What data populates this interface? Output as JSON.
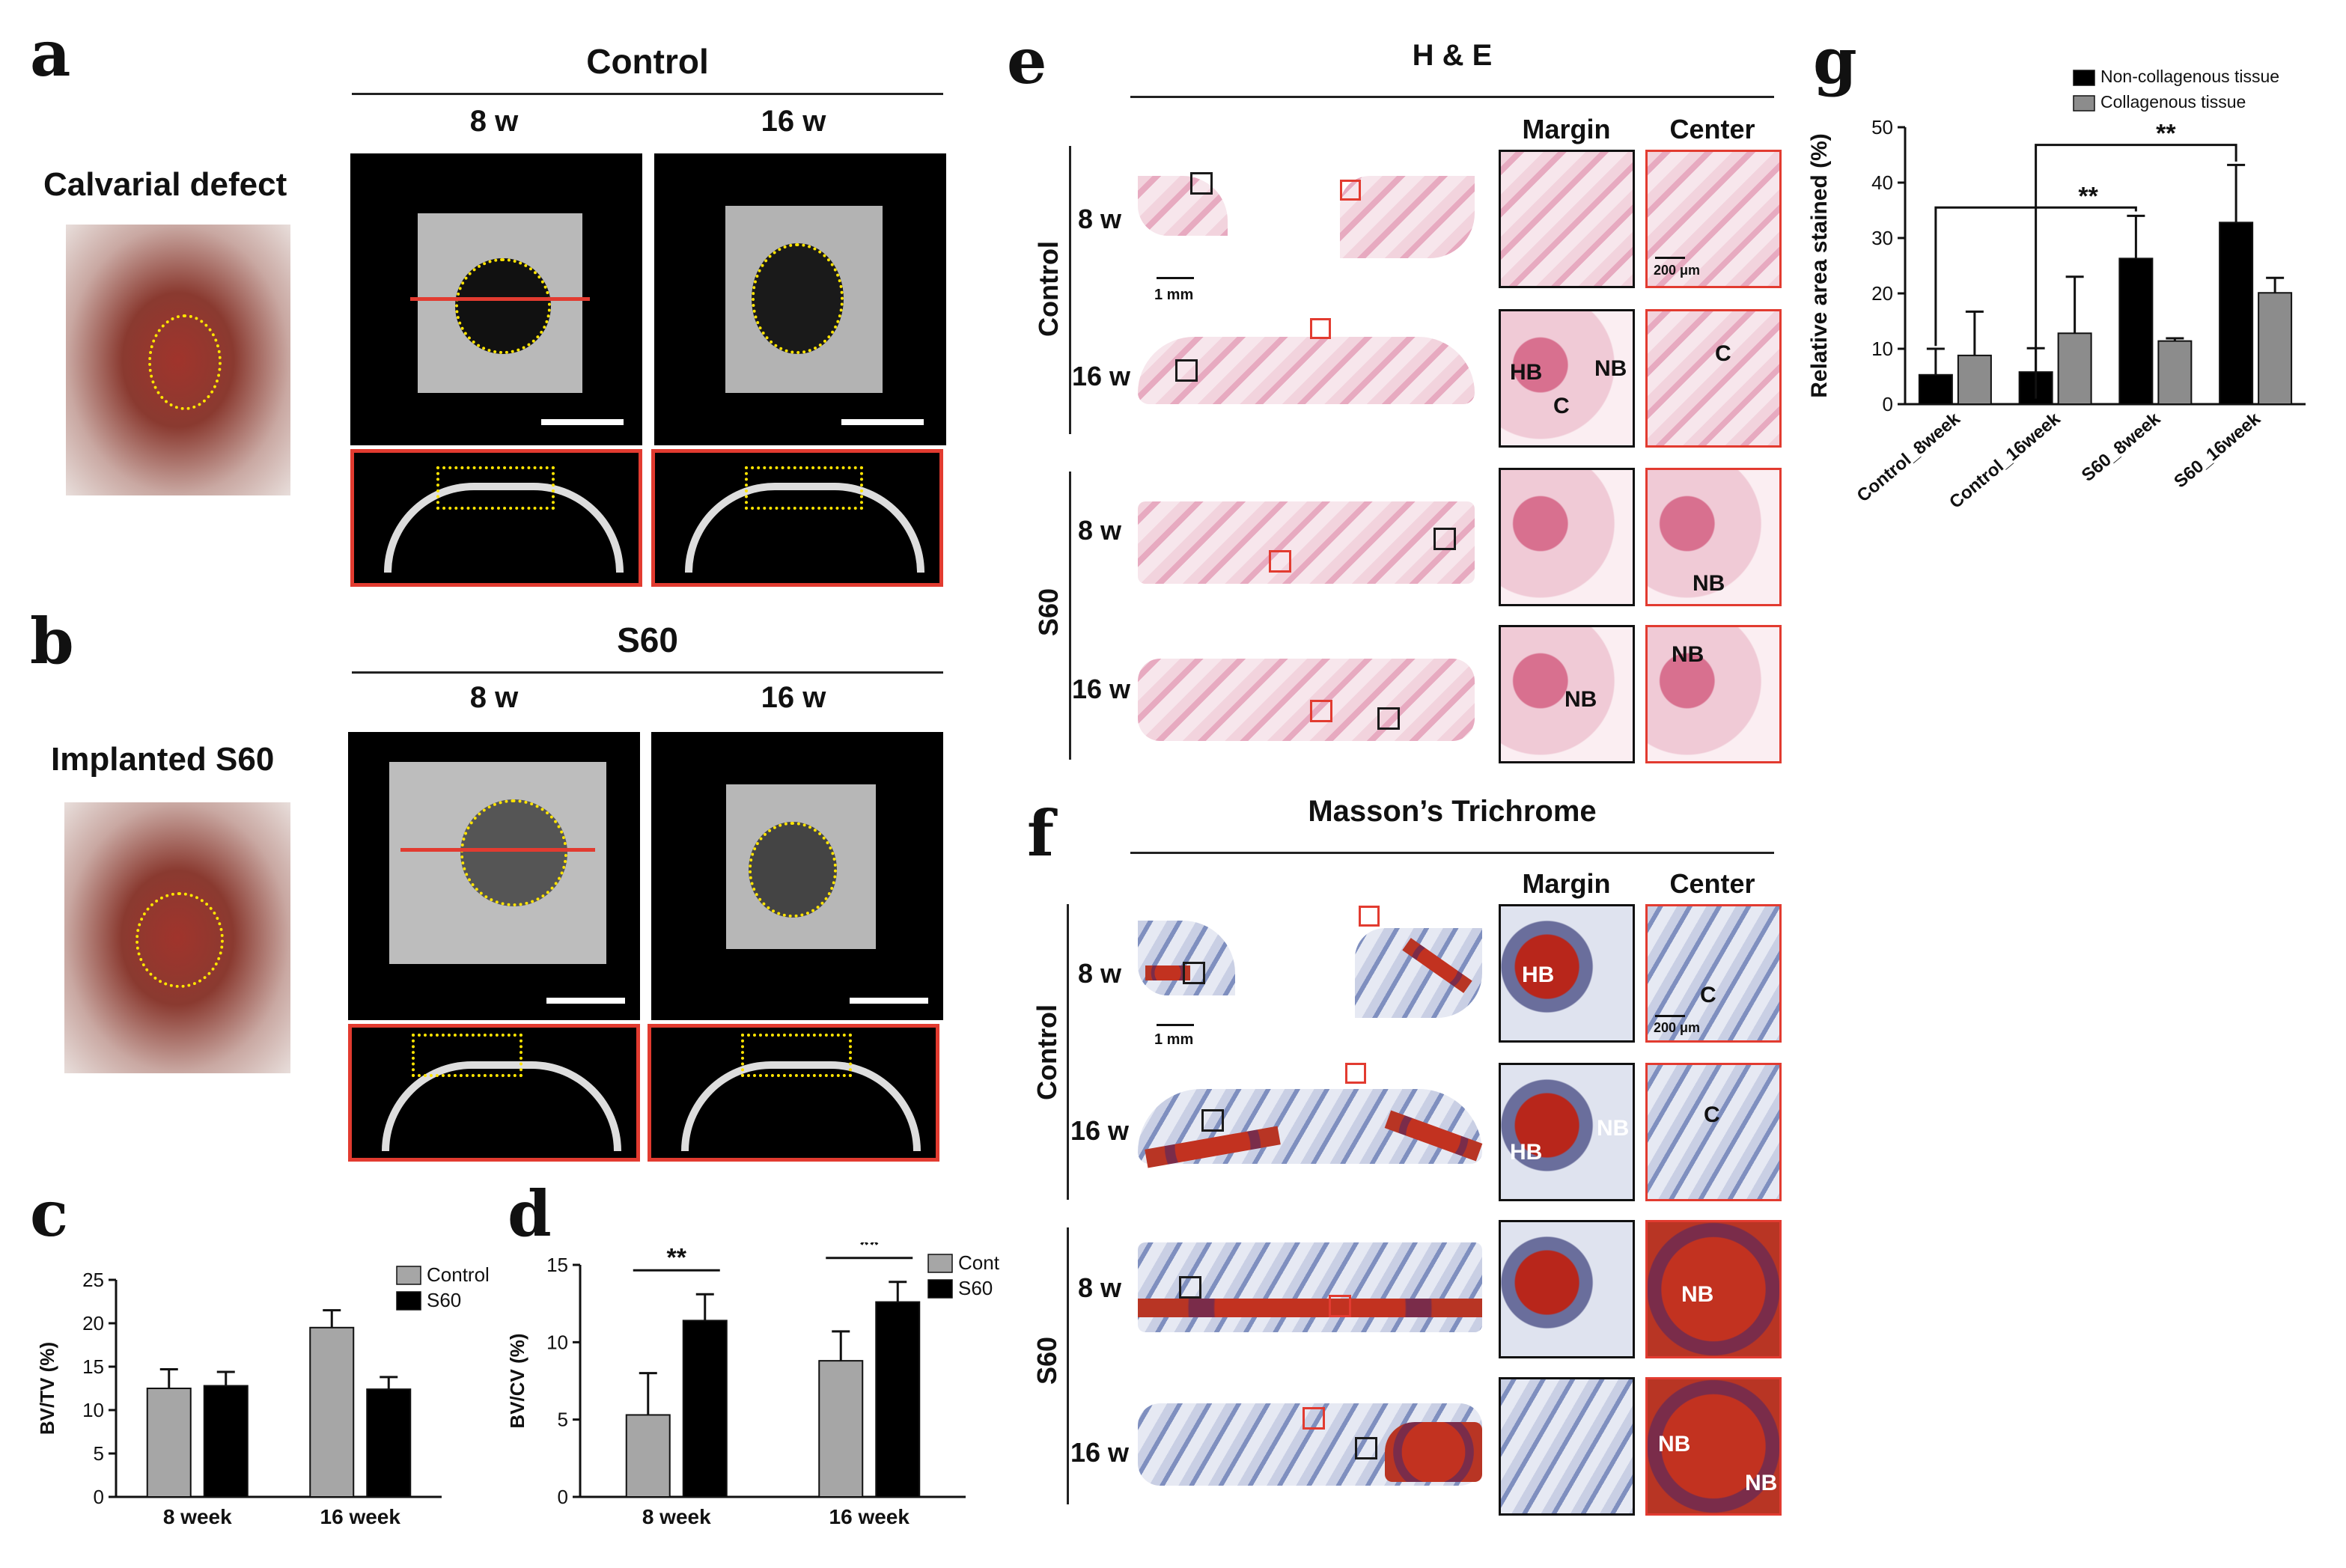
{
  "panels": {
    "a": {
      "letter": "a",
      "title": "Control",
      "cols": [
        "8 w",
        "16 w"
      ],
      "side_label": "Calvarial defect"
    },
    "b": {
      "letter": "b",
      "title": "S60",
      "cols": [
        "8 w",
        "16 w"
      ],
      "side_label": "Implanted S60"
    },
    "e": {
      "letter": "e",
      "title": "H & E",
      "col_margin": "Margin",
      "col_center": "Center",
      "group_control": "Control",
      "group_s60": "S60",
      "row_8w": "8 w",
      "row_16w": "16 w",
      "scale_1mm": "1 mm",
      "scale_200um": "200 μm",
      "tissue_hb": "HB",
      "tissue_nb": "NB",
      "tissue_c": "C"
    },
    "f": {
      "letter": "f",
      "title": "Masson’s Trichrome",
      "col_margin": "Margin",
      "col_center": "Center",
      "group_control": "Control",
      "group_s60": "S60",
      "row_8w": "8 w",
      "row_16w": "16 w",
      "scale_1mm": "1 mm",
      "scale_200um": "200 μm",
      "tissue_hb": "HB",
      "tissue_nb": "NB",
      "tissue_c": "C"
    }
  },
  "chart_data": [
    {
      "id": "c",
      "letter": "c",
      "type": "bar",
      "categories": [
        "8 week",
        "16 week"
      ],
      "series": [
        {
          "name": "Control",
          "values": [
            12.5,
            19.5
          ],
          "errors": [
            2.2,
            2.0
          ],
          "color": "#a6a6a6"
        },
        {
          "name": "S60",
          "values": [
            12.8,
            12.4
          ],
          "errors": [
            1.6,
            1.4
          ],
          "color": "#000000"
        }
      ],
      "ylabel": "BV/TV (%)",
      "ylim": [
        0,
        25
      ],
      "yticks": [
        0,
        5,
        10,
        15,
        20,
        25
      ],
      "legend": "top-right"
    },
    {
      "id": "d",
      "letter": "d",
      "type": "bar",
      "categories": [
        "8 week",
        "16 week"
      ],
      "series": [
        {
          "name": "Cont",
          "values": [
            5.3,
            8.8
          ],
          "errors": [
            2.7,
            1.9
          ],
          "color": "#a6a6a6"
        },
        {
          "name": "S60",
          "values": [
            11.4,
            12.6
          ],
          "errors": [
            1.7,
            1.3
          ],
          "color": "#000000"
        }
      ],
      "ylabel": "BV/CV (%)",
      "ylim": [
        0,
        15
      ],
      "yticks": [
        0,
        5,
        10,
        15
      ],
      "annotations": [
        "**",
        "**"
      ],
      "legend": "top-right"
    },
    {
      "id": "g",
      "letter": "g",
      "type": "bar",
      "categories": [
        "Control_8week",
        "Control_16week",
        "S60_8week",
        "S60_16week"
      ],
      "series": [
        {
          "name": "Non-collagenous tissue",
          "values": [
            5.3,
            5.8,
            26.3,
            32.8
          ],
          "errors": [
            4.7,
            4.3,
            7.7,
            10.4
          ],
          "color": "#000000"
        },
        {
          "name": "Collagenous tissue",
          "values": [
            8.8,
            12.8,
            11.4,
            20.1
          ],
          "errors": [
            7.9,
            10.2,
            0.5,
            2.7
          ],
          "color": "#8c8c8c"
        }
      ],
      "ylabel": "Relative area stained (%)",
      "ylim": [
        0,
        50
      ],
      "yticks": [
        0,
        10,
        20,
        30,
        40,
        50
      ],
      "annotations": [
        "**",
        "**"
      ],
      "legend": "top-right"
    }
  ]
}
